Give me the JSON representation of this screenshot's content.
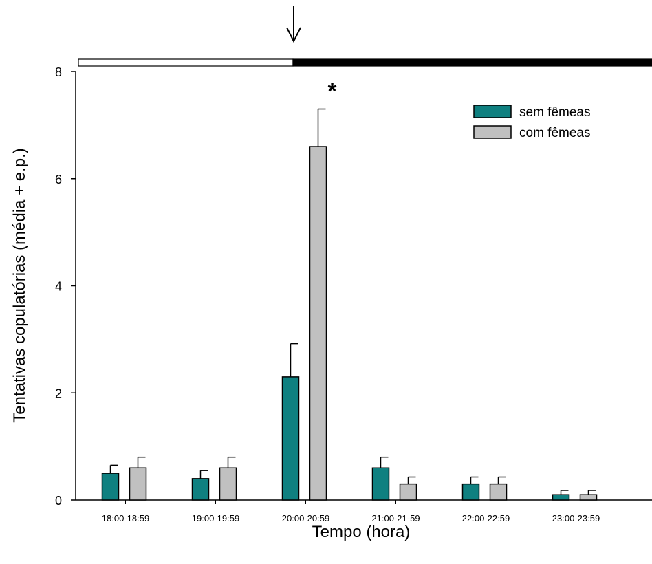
{
  "chart_data": {
    "type": "bar",
    "title": "",
    "xlabel": "Tempo (hora)",
    "ylabel": "Tentativas copulatórias (média + e.p.)",
    "ylim": [
      0,
      8
    ],
    "yticks": [
      0,
      2,
      4,
      6,
      8
    ],
    "categories": [
      "18:00-18:59",
      "19:00-19:59",
      "20:00-20:59",
      "21:00-21-59",
      "22:00-22:59",
      "23:00-23:59"
    ],
    "series": [
      {
        "name": "sem fêmeas",
        "color": "#0f8080",
        "values": [
          0.5,
          0.4,
          2.3,
          0.6,
          0.3,
          0.1
        ],
        "errors": [
          0.15,
          0.15,
          0.62,
          0.2,
          0.13,
          0.08
        ]
      },
      {
        "name": "com fêmeas",
        "color": "#c0c0c0",
        "values": [
          0.6,
          0.6,
          6.6,
          0.3,
          0.3,
          0.1
        ],
        "errors": [
          0.2,
          0.2,
          0.7,
          0.13,
          0.13,
          0.08
        ]
      }
    ],
    "legend_position": "top-right",
    "grid": false,
    "significance": {
      "category": "20:00-20:59",
      "label": "*"
    },
    "photoperiod_bar": {
      "light_until": "20:00",
      "dark_from": "20:00",
      "arrow_at": "20:00"
    }
  }
}
